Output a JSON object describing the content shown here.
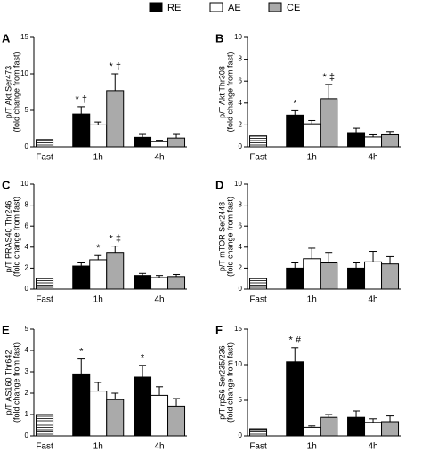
{
  "legend": [
    {
      "name": "RE",
      "color": "#000000"
    },
    {
      "name": "AE",
      "color": "#ffffff"
    },
    {
      "name": "CE",
      "color": "#aaaaaa"
    }
  ],
  "chart_data": [
    {
      "type": "bar",
      "panel": "A",
      "ylabel": [
        "p/T Akt Ser473",
        "(fold change from fast)"
      ],
      "ylim": [
        0,
        15
      ],
      "yticks": [
        0,
        5,
        10,
        15
      ],
      "baseline": {
        "label": "Fast",
        "value": 1.0
      },
      "categories": [
        "1h",
        "4h"
      ],
      "series": [
        {
          "values": [
            4.5,
            1.3
          ],
          "errors": [
            1.0,
            0.4
          ],
          "annotations": [
            "* †",
            null
          ]
        },
        {
          "values": [
            3.0,
            0.7
          ],
          "errors": [
            0.4,
            0.2
          ],
          "annotations": [
            null,
            null
          ]
        },
        {
          "values": [
            7.7,
            1.2
          ],
          "errors": [
            2.3,
            0.5
          ],
          "annotations": [
            "* ‡",
            null
          ]
        }
      ]
    },
    {
      "type": "bar",
      "panel": "B",
      "ylabel": [
        "p/T Akt Thr308",
        "(fold change from fast)"
      ],
      "ylim": [
        0,
        10
      ],
      "yticks": [
        0,
        2,
        4,
        6,
        8,
        10
      ],
      "baseline": {
        "label": "Fast",
        "value": 1.0
      },
      "categories": [
        "1h",
        "4h"
      ],
      "series": [
        {
          "values": [
            2.9,
            1.3
          ],
          "errors": [
            0.4,
            0.4
          ],
          "annotations": [
            "*",
            null
          ]
        },
        {
          "values": [
            2.1,
            0.9
          ],
          "errors": [
            0.3,
            0.2
          ],
          "annotations": [
            null,
            null
          ]
        },
        {
          "values": [
            4.4,
            1.1
          ],
          "errors": [
            1.3,
            0.3
          ],
          "annotations": [
            "* ‡",
            null
          ]
        }
      ]
    },
    {
      "type": "bar",
      "panel": "C",
      "ylabel": [
        "p/T PRAS40 Thr246",
        "(fold change from fast)"
      ],
      "ylim": [
        0,
        10
      ],
      "yticks": [
        0,
        2,
        4,
        6,
        8,
        10
      ],
      "baseline": {
        "label": "Fast",
        "value": 1.0
      },
      "categories": [
        "1h",
        "4h"
      ],
      "series": [
        {
          "values": [
            2.2,
            1.3
          ],
          "errors": [
            0.3,
            0.2
          ],
          "annotations": [
            null,
            null
          ]
        },
        {
          "values": [
            2.8,
            1.1
          ],
          "errors": [
            0.4,
            0.2
          ],
          "annotations": [
            "*",
            null
          ]
        },
        {
          "values": [
            3.5,
            1.2
          ],
          "errors": [
            0.6,
            0.2
          ],
          "annotations": [
            "* ‡",
            null
          ]
        }
      ]
    },
    {
      "type": "bar",
      "panel": "D",
      "ylabel": [
        "p/T mTOR Ser2448",
        "(fold change from fast)"
      ],
      "ylim": [
        0,
        10
      ],
      "yticks": [
        0,
        2,
        4,
        6,
        8,
        10
      ],
      "baseline": {
        "label": "Fast",
        "value": 1.0
      },
      "categories": [
        "1h",
        "4h"
      ],
      "series": [
        {
          "values": [
            2.0,
            2.0
          ],
          "errors": [
            0.5,
            0.5
          ],
          "annotations": [
            null,
            null
          ]
        },
        {
          "values": [
            2.9,
            2.6
          ],
          "errors": [
            1.0,
            1.0
          ],
          "annotations": [
            null,
            null
          ]
        },
        {
          "values": [
            2.5,
            2.4
          ],
          "errors": [
            1.0,
            0.7
          ],
          "annotations": [
            null,
            null
          ]
        }
      ]
    },
    {
      "type": "bar",
      "panel": "E",
      "ylabel": [
        "p/T AS160 Thr642",
        "(fold change from fast)"
      ],
      "ylim": [
        0,
        5
      ],
      "yticks": [
        0,
        1,
        2,
        3,
        4,
        5
      ],
      "baseline": {
        "label": "Fast",
        "value": 1.0
      },
      "categories": [
        "1h",
        "4h"
      ],
      "series": [
        {
          "values": [
            2.9,
            2.75
          ],
          "errors": [
            0.7,
            0.55
          ],
          "annotations": [
            "*",
            "*"
          ]
        },
        {
          "values": [
            2.1,
            1.9
          ],
          "errors": [
            0.4,
            0.4
          ],
          "annotations": [
            null,
            null
          ]
        },
        {
          "values": [
            1.7,
            1.4
          ],
          "errors": [
            0.3,
            0.35
          ],
          "annotations": [
            null,
            null
          ]
        }
      ]
    },
    {
      "type": "bar",
      "panel": "F",
      "ylabel": [
        "p/T rpS6 Ser235/236",
        "(fold change from fast)"
      ],
      "ylim": [
        0,
        15
      ],
      "yticks": [
        0,
        5,
        10,
        15
      ],
      "baseline": {
        "label": "Fast",
        "value": 1.0
      },
      "categories": [
        "1h",
        "4h"
      ],
      "series": [
        {
          "values": [
            10.4,
            2.6
          ],
          "errors": [
            2.0,
            0.9
          ],
          "annotations": [
            "* #",
            null
          ]
        },
        {
          "values": [
            1.2,
            1.9
          ],
          "errors": [
            0.2,
            0.5
          ],
          "annotations": [
            null,
            null
          ]
        },
        {
          "values": [
            2.6,
            2.0
          ],
          "errors": [
            0.4,
            0.8
          ],
          "annotations": [
            null,
            null
          ]
        }
      ]
    }
  ]
}
